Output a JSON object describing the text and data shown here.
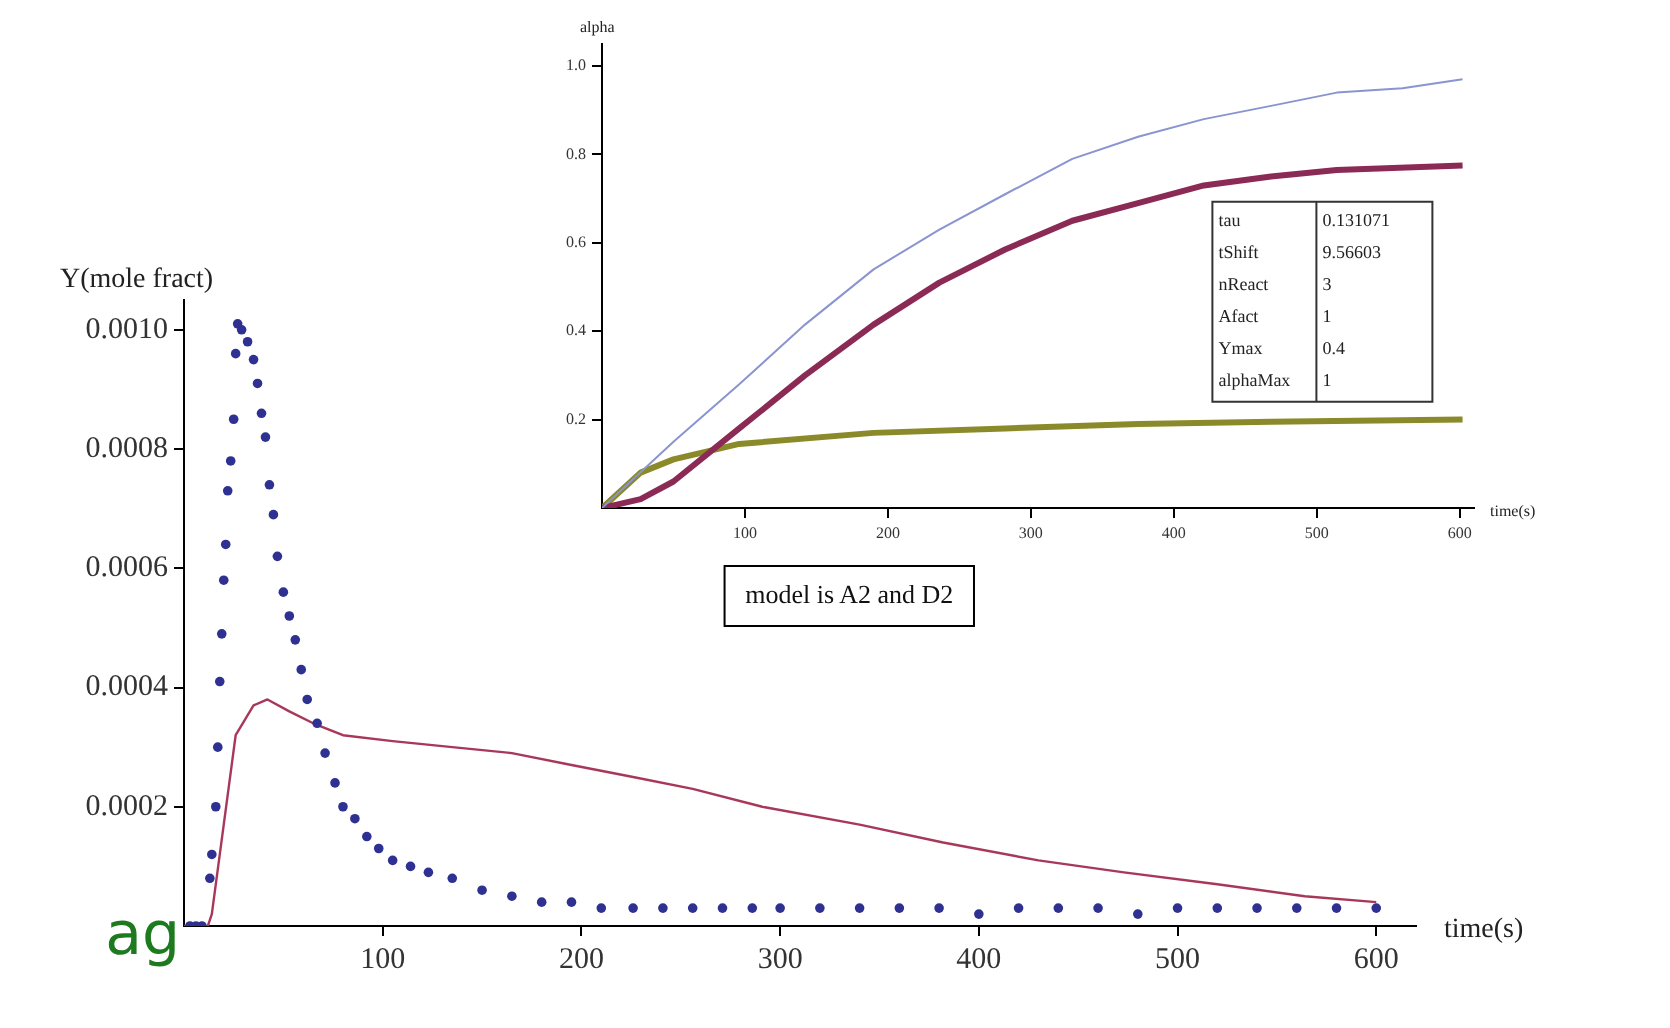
{
  "chart_data": [
    {
      "type": "scatter",
      "xlabel": "time(s)",
      "ylabel": "Y(mole fract)",
      "annotations": [
        "model is A2 and D2",
        "ag"
      ],
      "xlim": [
        0,
        620
      ],
      "ylim": [
        0,
        0.00105
      ],
      "xticks": [
        100,
        200,
        300,
        400,
        500,
        600
      ],
      "yticks": [
        0.0002,
        0.0004,
        0.0006,
        0.0008,
        {
          "value": 0.001,
          "label": "0.0010"
        }
      ],
      "grid": false,
      "legend": false,
      "series": [
        {
          "type": "scatter",
          "marker": "circle",
          "color": "#2e3192",
          "x": [
            3,
            6,
            9,
            13,
            14,
            16,
            17,
            18,
            19,
            20,
            21,
            22,
            23.5,
            25,
            26,
            27,
            29,
            32,
            35,
            37,
            39,
            41,
            43,
            45,
            47,
            50,
            53,
            56,
            59,
            62,
            67,
            71,
            76,
            80,
            86,
            92,
            98,
            105,
            114,
            123,
            135,
            150,
            165,
            180,
            195,
            210,
            226,
            241,
            256,
            271,
            286,
            300,
            320,
            340,
            360,
            380,
            400,
            420,
            440,
            460,
            480,
            500,
            520,
            540,
            560,
            580,
            600
          ],
          "values": [
            0,
            0,
            0,
            8e-05,
            0.00012,
            0.0002,
            0.0003,
            0.00041,
            0.00049,
            0.00058,
            0.00064,
            0.00073,
            0.00078,
            0.00085,
            0.00096,
            0.00101,
            0.001,
            0.00098,
            0.00095,
            0.00091,
            0.00086,
            0.00082,
            0.00074,
            0.00069,
            0.00062,
            0.00056,
            0.00052,
            0.00048,
            0.00043,
            0.00038,
            0.00034,
            0.00029,
            0.00024,
            0.0002,
            0.00018,
            0.00015,
            0.00013,
            0.00011,
            0.0001,
            9e-05,
            8e-05,
            6e-05,
            5e-05,
            4e-05,
            4e-05,
            3e-05,
            3e-05,
            3e-05,
            3e-05,
            3e-05,
            3e-05,
            3e-05,
            3e-05,
            3e-05,
            3e-05,
            3e-05,
            2e-05,
            3e-05,
            3e-05,
            3e-05,
            2e-05,
            3e-05,
            3e-05,
            3e-05,
            3e-05,
            3e-05,
            3e-05
          ]
        },
        {
          "type": "line",
          "color": "#a8385a",
          "x": [
            0,
            12,
            14,
            20,
            26,
            35,
            42,
            53,
            65,
            80,
            105,
            135,
            165,
            195,
            226,
            256,
            291,
            340,
            382,
            430,
            473,
            520,
            564,
            600
          ],
          "values": [
            0,
            0,
            2e-05,
            0.00017,
            0.00032,
            0.00037,
            0.00038,
            0.00036,
            0.00034,
            0.00032,
            0.00031,
            0.0003,
            0.00029,
            0.00027,
            0.00025,
            0.00023,
            0.0002,
            0.00017,
            0.00014,
            0.00011,
            9e-05,
            7e-05,
            5e-05,
            4e-05
          ]
        }
      ]
    },
    {
      "type": "line",
      "xlabel": "time(s)",
      "ylabel": "alpha",
      "annotations": [
        "tau",
        "0.131071",
        "tShift",
        "9.56603",
        "nReact",
        "3",
        "Afact",
        "1",
        "Ymax",
        "0.4",
        "alphaMax",
        "1"
      ],
      "xlim": [
        0,
        610
      ],
      "ylim": [
        0,
        1.05
      ],
      "xticks": [
        100,
        200,
        300,
        400,
        500,
        600
      ],
      "yticks": [
        0.2,
        0.4,
        0.6,
        0.8,
        {
          "value": 1,
          "label": "1.0"
        }
      ],
      "grid": false,
      "legend": false,
      "series": [
        {
          "color": "#8a94d0",
          "x": [
            0,
            50,
            96,
            142,
            190,
            236,
            282,
            329,
            375,
            421,
            468,
            514,
            560,
            602
          ],
          "values": [
            0,
            0.15,
            0.28,
            0.415,
            0.54,
            0.63,
            0.71,
            0.79,
            0.84,
            0.88,
            0.91,
            0.94,
            0.95,
            0.97
          ]
        },
        {
          "color": "#8b2a55",
          "x": [
            0,
            27,
            50,
            96,
            142,
            190,
            236,
            282,
            329,
            375,
            421,
            468,
            514,
            602
          ],
          "values": [
            0,
            0.02,
            0.06,
            0.18,
            0.3,
            0.415,
            0.51,
            0.585,
            0.65,
            0.69,
            0.73,
            0.75,
            0.765,
            0.775
          ]
        },
        {
          "color": "#8a8a2a",
          "x": [
            0,
            27,
            50,
            96,
            190,
            282,
            375,
            468,
            602
          ],
          "values": [
            0,
            0.08,
            0.11,
            0.145,
            0.17,
            0.18,
            0.19,
            0.195,
            0.2
          ]
        }
      ]
    }
  ]
}
